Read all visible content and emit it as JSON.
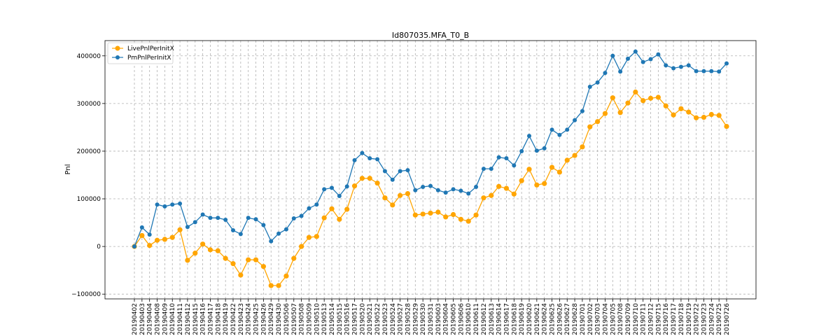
{
  "chart_data": {
    "type": "line",
    "title": "Id807035.MFA_T0_B",
    "xlabel": "",
    "ylabel": "Pnl",
    "ylim": [
      -110000,
      432000
    ],
    "yticks": [
      -100000,
      0,
      100000,
      200000,
      300000,
      400000
    ],
    "ytick_labels": [
      "−100000",
      "0",
      "100000",
      "200000",
      "300000",
      "400000"
    ],
    "grid": true,
    "legend_position": "top-left",
    "categories": [
      "20190402",
      "20190403",
      "20190404",
      "20190408",
      "20190409",
      "20190410",
      "20190411",
      "20190412",
      "20190415",
      "20190416",
      "20190417",
      "20190418",
      "20190419",
      "20190422",
      "20190423",
      "20190424",
      "20190425",
      "20190426",
      "20190429",
      "20190430",
      "20190506",
      "20190507",
      "20190508",
      "20190509",
      "20190510",
      "20190513",
      "20190514",
      "20190515",
      "20190516",
      "20190517",
      "20190520",
      "20190521",
      "20190522",
      "20190523",
      "20190524",
      "20190527",
      "20190528",
      "20190529",
      "20190530",
      "20190531",
      "20190603",
      "20190604",
      "20190605",
      "20190606",
      "20190610",
      "20190611",
      "20190612",
      "20190613",
      "20190614",
      "20190617",
      "20190618",
      "20190619",
      "20190620",
      "20190621",
      "20190624",
      "20190625",
      "20190626",
      "20190627",
      "20190628",
      "20190701",
      "20190702",
      "20190703",
      "20190704",
      "20190705",
      "20190708",
      "20190709",
      "20190710",
      "20190711",
      "20190712",
      "20190715",
      "20190716",
      "20190717",
      "20190718",
      "20190719",
      "20190722",
      "20190723",
      "20190724",
      "20190725",
      "20190726"
    ],
    "series": [
      {
        "name": "LivePnlPerInitX",
        "color": "#ffa500",
        "values": [
          0,
          23000,
          2000,
          13000,
          15000,
          19000,
          35000,
          -29000,
          -14000,
          5000,
          -7000,
          -9000,
          -25000,
          -36000,
          -60000,
          -28000,
          -28000,
          -42000,
          -82000,
          -82000,
          -62000,
          -25000,
          0,
          19000,
          21000,
          60000,
          79000,
          57000,
          78000,
          127000,
          143000,
          143000,
          133000,
          102000,
          87000,
          107000,
          111000,
          66000,
          68000,
          70000,
          72000,
          62000,
          67000,
          57000,
          53000,
          66000,
          102000,
          107000,
          126000,
          122000,
          110000,
          138000,
          162000,
          129000,
          132000,
          166000,
          156000,
          181000,
          191000,
          209000,
          251000,
          262000,
          279000,
          312000,
          281000,
          301000,
          324000,
          306000,
          311000,
          313000,
          295000,
          276000,
          289000,
          282000,
          270000,
          271000,
          277000,
          275000,
          252000
        ]
      },
      {
        "name": "PmPnlPerInitX",
        "color": "#1f77b4",
        "values": [
          0,
          40000,
          25000,
          88000,
          84000,
          88000,
          90000,
          41000,
          51000,
          67000,
          60000,
          60000,
          56000,
          34000,
          26000,
          60000,
          57000,
          45000,
          11000,
          27000,
          36000,
          59000,
          64000,
          80000,
          88000,
          120000,
          123000,
          106000,
          126000,
          181000,
          196000,
          185000,
          183000,
          158000,
          140000,
          158000,
          160000,
          118000,
          125000,
          127000,
          118000,
          113000,
          120000,
          117000,
          111000,
          125000,
          163000,
          163000,
          187000,
          185000,
          170000,
          200000,
          232000,
          201000,
          206000,
          245000,
          234000,
          245000,
          265000,
          284000,
          335000,
          344000,
          364000,
          400000,
          367000,
          394000,
          409000,
          387000,
          393000,
          403000,
          380000,
          374000,
          377000,
          380000,
          368000,
          368000,
          368000,
          367000,
          384000
        ]
      }
    ]
  }
}
